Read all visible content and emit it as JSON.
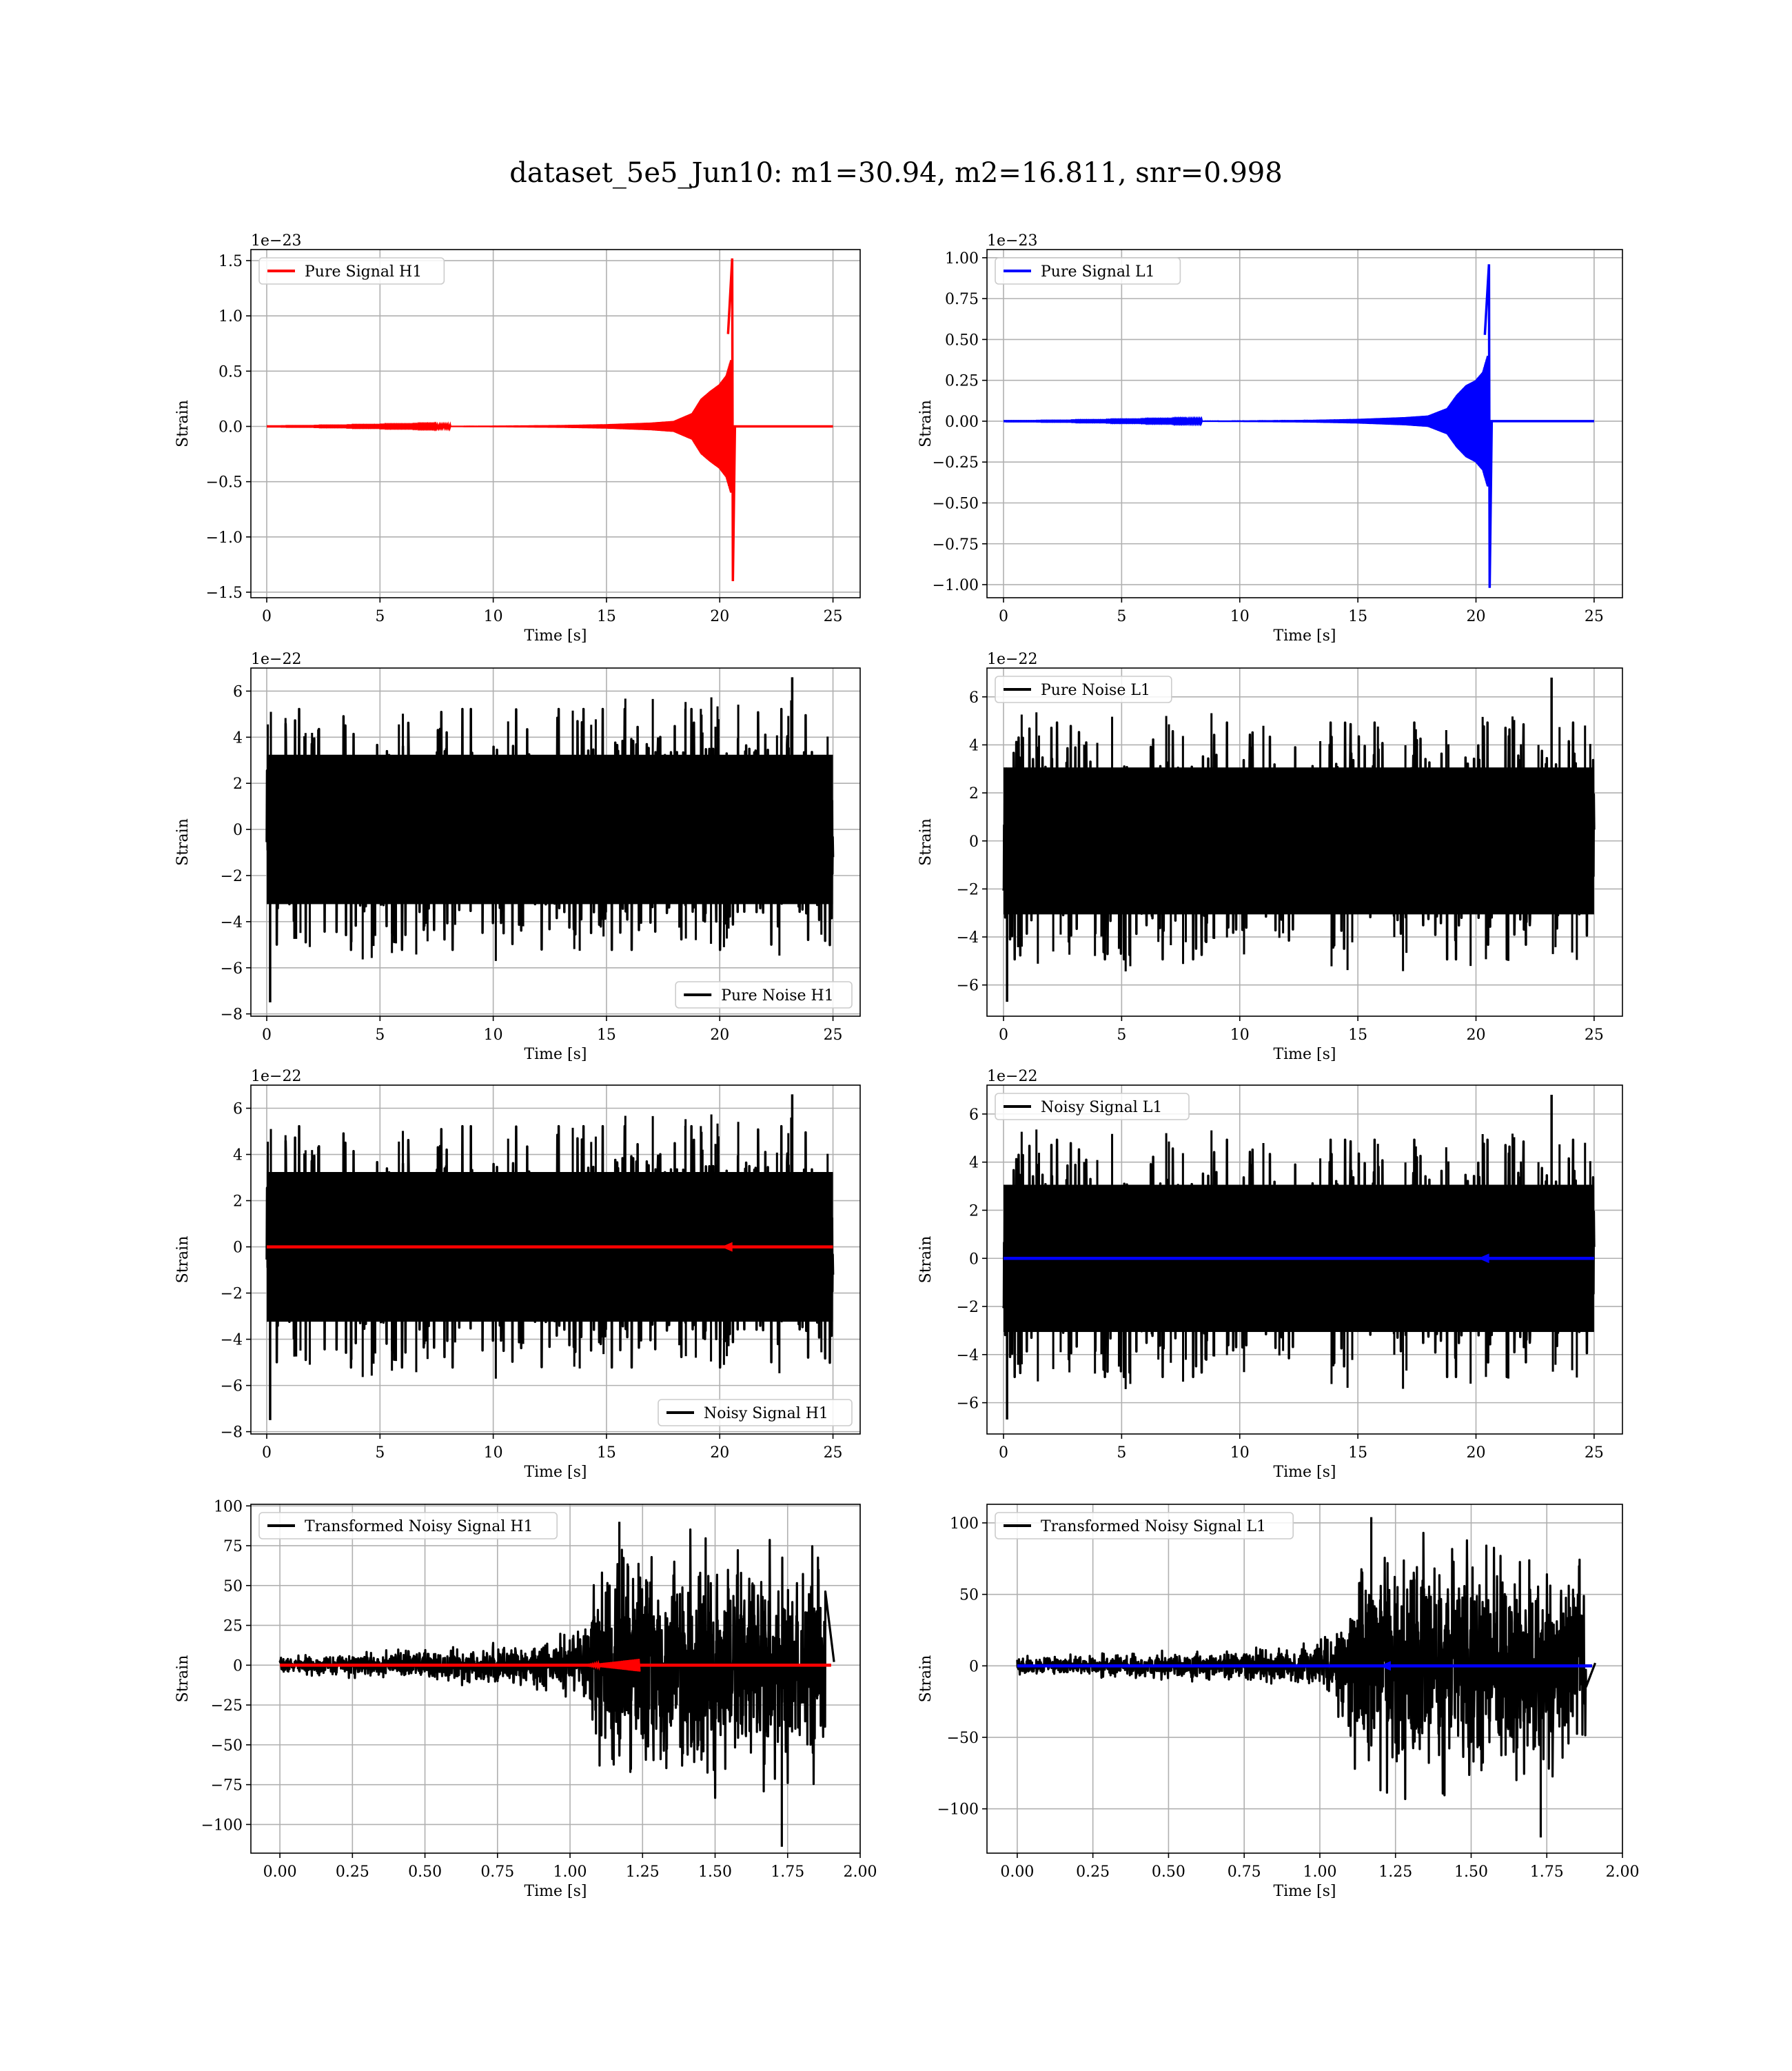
{
  "figure": {
    "suptitle": "dataset_5e5_Jun10: m1=30.94, m2=16.811, snr=0.998"
  },
  "colors": {
    "h1_signal": "#ff0000",
    "l1_signal": "#0000ff",
    "noise": "#000000",
    "grid": "#b0b0b0"
  },
  "chart_data": [
    {
      "id": "pure-signal-h1",
      "type": "line",
      "xlabel": "Time [s]",
      "ylabel": "Strain",
      "offset_label": "1e−23",
      "xlim": [
        -0.7,
        26.2
      ],
      "ylim": [
        -1.55,
        1.6
      ],
      "xticks": [
        0,
        5,
        10,
        15,
        20,
        25
      ],
      "xtick_labels": [
        "0",
        "5",
        "10",
        "15",
        "20",
        "25"
      ],
      "yticks": [
        -1.5,
        -1.0,
        -0.5,
        0.0,
        0.5,
        1.0,
        1.5
      ],
      "ytick_labels": [
        "−1.5",
        "−1.0",
        "−0.5",
        "0.0",
        "0.5",
        "1.0",
        "1.5"
      ],
      "legend": {
        "loc": "upper left"
      },
      "series": [
        {
          "name": "Pure Signal H1",
          "color": "#ff0000",
          "kind": "chirp",
          "start": 0,
          "end": 25,
          "merger": 20.55,
          "peak_pos": 1.52,
          "peak_neg": -1.4,
          "envelope": [
            [
              0,
              0.0
            ],
            [
              7,
              0.003
            ],
            [
              10,
              0.006
            ],
            [
              13,
              0.012
            ],
            [
              15,
              0.02
            ],
            [
              17,
              0.035
            ],
            [
              18,
              0.05
            ],
            [
              18.8,
              0.12
            ],
            [
              19.2,
              0.25
            ],
            [
              19.6,
              0.32
            ],
            [
              20.0,
              0.38
            ],
            [
              20.3,
              0.46
            ],
            [
              20.5,
              0.6
            ]
          ]
        }
      ]
    },
    {
      "id": "pure-signal-l1",
      "type": "line",
      "xlabel": "Time [s]",
      "ylabel": "Strain",
      "offset_label": "1e−23",
      "xlim": [
        -0.7,
        26.2
      ],
      "ylim": [
        -1.08,
        1.05
      ],
      "xticks": [
        0,
        5,
        10,
        15,
        20,
        25
      ],
      "xtick_labels": [
        "0",
        "5",
        "10",
        "15",
        "20",
        "25"
      ],
      "yticks": [
        -1.0,
        -0.75,
        -0.5,
        -0.25,
        0.0,
        0.25,
        0.5,
        0.75,
        1.0
      ],
      "ytick_labels": [
        "−1.00",
        "−0.75",
        "−0.50",
        "−0.25",
        "0.00",
        "0.25",
        "0.50",
        "0.75",
        "1.00"
      ],
      "legend": {
        "loc": "upper left"
      },
      "series": [
        {
          "name": "Pure Signal L1",
          "color": "#0000ff",
          "kind": "chirp",
          "start": 0,
          "end": 25,
          "merger": 20.55,
          "peak_pos": 0.96,
          "peak_neg": -1.02,
          "envelope": [
            [
              0,
              0.0
            ],
            [
              7,
              0.002
            ],
            [
              10,
              0.004
            ],
            [
              13,
              0.008
            ],
            [
              15,
              0.014
            ],
            [
              17,
              0.025
            ],
            [
              18,
              0.035
            ],
            [
              18.8,
              0.08
            ],
            [
              19.2,
              0.16
            ],
            [
              19.6,
              0.22
            ],
            [
              20.0,
              0.25
            ],
            [
              20.3,
              0.3
            ],
            [
              20.5,
              0.4
            ]
          ]
        }
      ]
    },
    {
      "id": "pure-noise-h1",
      "type": "line",
      "xlabel": "Time [s]",
      "ylabel": "Strain",
      "offset_label": "1e−22",
      "xlim": [
        -0.7,
        26.2
      ],
      "ylim": [
        -8.1,
        7.0
      ],
      "xticks": [
        0,
        5,
        10,
        15,
        20,
        25
      ],
      "xtick_labels": [
        "0",
        "5",
        "10",
        "15",
        "20",
        "25"
      ],
      "yticks": [
        -8,
        -6,
        -4,
        -2,
        0,
        2,
        4,
        6
      ],
      "ytick_labels": [
        "−8",
        "−6",
        "−4",
        "−2",
        "0",
        "2",
        "4",
        "6"
      ],
      "legend": {
        "loc": "lower right"
      },
      "series": [
        {
          "name": "Pure Noise H1",
          "color": "#000000",
          "kind": "noise",
          "start": 0,
          "end": 25,
          "core": 3.6,
          "peak": 6.6,
          "trough": -7.5,
          "seed": 11
        }
      ]
    },
    {
      "id": "pure-noise-l1",
      "type": "line",
      "xlabel": "Time [s]",
      "ylabel": "Strain",
      "offset_label": "1e−22",
      "xlim": [
        -0.7,
        26.2
      ],
      "ylim": [
        -7.3,
        7.2
      ],
      "xticks": [
        0,
        5,
        10,
        15,
        20,
        25
      ],
      "xtick_labels": [
        "0",
        "5",
        "10",
        "15",
        "20",
        "25"
      ],
      "yticks": [
        -6,
        -4,
        -2,
        0,
        2,
        4,
        6
      ],
      "ytick_labels": [
        "−6",
        "−4",
        "−2",
        "0",
        "2",
        "4",
        "6"
      ],
      "legend": {
        "loc": "upper left"
      },
      "series": [
        {
          "name": "Pure Noise L1",
          "color": "#000000",
          "kind": "noise",
          "start": 0,
          "end": 25,
          "core": 3.4,
          "peak": 6.8,
          "trough": -6.7,
          "seed": 23
        }
      ]
    },
    {
      "id": "noisy-signal-h1",
      "type": "line",
      "xlabel": "Time [s]",
      "ylabel": "Strain",
      "offset_label": "1e−22",
      "xlim": [
        -0.7,
        26.2
      ],
      "ylim": [
        -8.1,
        7.0
      ],
      "xticks": [
        0,
        5,
        10,
        15,
        20,
        25
      ],
      "xtick_labels": [
        "0",
        "5",
        "10",
        "15",
        "20",
        "25"
      ],
      "yticks": [
        -8,
        -6,
        -4,
        -2,
        0,
        2,
        4,
        6
      ],
      "ytick_labels": [
        "−8",
        "−6",
        "−4",
        "−2",
        "0",
        "2",
        "4",
        "6"
      ],
      "legend": {
        "loc": "lower right"
      },
      "series": [
        {
          "name": "Noisy Signal H1",
          "color": "#000000",
          "kind": "noise",
          "start": 0,
          "end": 25,
          "core": 3.6,
          "peak": 6.6,
          "trough": -7.5,
          "seed": 11
        },
        {
          "color": "#ff0000",
          "kind": "flat",
          "start": 0,
          "end": 25,
          "value": 0,
          "marker_at": 20.5
        }
      ]
    },
    {
      "id": "noisy-signal-l1",
      "type": "line",
      "xlabel": "Time [s]",
      "ylabel": "Strain",
      "offset_label": "1e−22",
      "xlim": [
        -0.7,
        26.2
      ],
      "ylim": [
        -7.3,
        7.2
      ],
      "xticks": [
        0,
        5,
        10,
        15,
        20,
        25
      ],
      "xtick_labels": [
        "0",
        "5",
        "10",
        "15",
        "20",
        "25"
      ],
      "yticks": [
        -6,
        -4,
        -2,
        0,
        2,
        4,
        6
      ],
      "ytick_labels": [
        "−6",
        "−4",
        "−2",
        "0",
        "2",
        "4",
        "6"
      ],
      "legend": {
        "loc": "upper left"
      },
      "series": [
        {
          "name": "Noisy Signal L1",
          "color": "#000000",
          "kind": "noise",
          "start": 0,
          "end": 25,
          "core": 3.4,
          "peak": 6.8,
          "trough": -6.7,
          "seed": 23
        },
        {
          "color": "#0000ff",
          "kind": "flat",
          "start": 0,
          "end": 25,
          "value": 0,
          "marker_at": 20.5
        }
      ]
    },
    {
      "id": "transformed-h1",
      "type": "line",
      "xlabel": "Time [s]",
      "ylabel": "Strain",
      "offset_label": "",
      "xlim": [
        -0.1,
        2.0
      ],
      "ylim": [
        -118,
        101
      ],
      "xticks": [
        0,
        0.25,
        0.5,
        0.75,
        1.0,
        1.25,
        1.5,
        1.75,
        2.0
      ],
      "xtick_labels": [
        "0.00",
        "0.25",
        "0.50",
        "0.75",
        "1.00",
        "1.25",
        "1.50",
        "1.75",
        "2.00"
      ],
      "yticks": [
        -100,
        -75,
        -50,
        -25,
        0,
        25,
        50,
        75,
        100
      ],
      "ytick_labels": [
        "−100",
        "−75",
        "−50",
        "−25",
        "0",
        "25",
        "50",
        "75",
        "100"
      ],
      "legend": {
        "loc": "upper left"
      },
      "series": [
        {
          "name": "Transformed Noisy Signal H1",
          "color": "#000000",
          "kind": "burst",
          "start": 0,
          "end": 1.88,
          "tail_end": 1.91,
          "env": [
            [
              0,
              4
            ],
            [
              0.5,
              8
            ],
            [
              0.9,
              12
            ],
            [
              1.05,
              20
            ],
            [
              1.1,
              55
            ],
            [
              1.3,
              65
            ],
            [
              1.6,
              60
            ],
            [
              1.85,
              55
            ]
          ],
          "peak": 90,
          "trough": -114,
          "seed": 7
        },
        {
          "color": "#ff0000",
          "kind": "flat",
          "start": 0,
          "end": 1.9,
          "value": 0,
          "marker_at": 1.23,
          "wiggle_from": 1.05,
          "wiggle_to": 1.24,
          "wiggle_amp": 4
        }
      ]
    },
    {
      "id": "transformed-l1",
      "type": "line",
      "xlabel": "Time [s]",
      "ylabel": "Strain",
      "offset_label": "",
      "xlim": [
        -0.1,
        2.0
      ],
      "ylim": [
        -131,
        113
      ],
      "xticks": [
        0,
        0.25,
        0.5,
        0.75,
        1.0,
        1.25,
        1.5,
        1.75,
        2.0
      ],
      "xtick_labels": [
        "0.00",
        "0.25",
        "0.50",
        "0.75",
        "1.00",
        "1.25",
        "1.50",
        "1.75",
        "2.00"
      ],
      "yticks": [
        -100,
        -50,
        0,
        50,
        100
      ],
      "ytick_labels": [
        "−100",
        "−50",
        "0",
        "50",
        "100"
      ],
      "legend": {
        "loc": "upper left"
      },
      "series": [
        {
          "name": "Transformed Noisy Signal L1",
          "color": "#000000",
          "kind": "burst",
          "start": 0,
          "end": 1.88,
          "tail_end": 1.91,
          "env": [
            [
              0,
              5
            ],
            [
              0.5,
              8
            ],
            [
              0.9,
              10
            ],
            [
              1.05,
              20
            ],
            [
              1.12,
              60
            ],
            [
              1.3,
              70
            ],
            [
              1.6,
              62
            ],
            [
              1.85,
              55
            ]
          ],
          "peak": 104,
          "trough": -120,
          "seed": 19
        },
        {
          "color": "#0000ff",
          "kind": "flat",
          "start": 0,
          "end": 1.9,
          "value": 0,
          "marker_at": 1.23
        }
      ]
    }
  ]
}
